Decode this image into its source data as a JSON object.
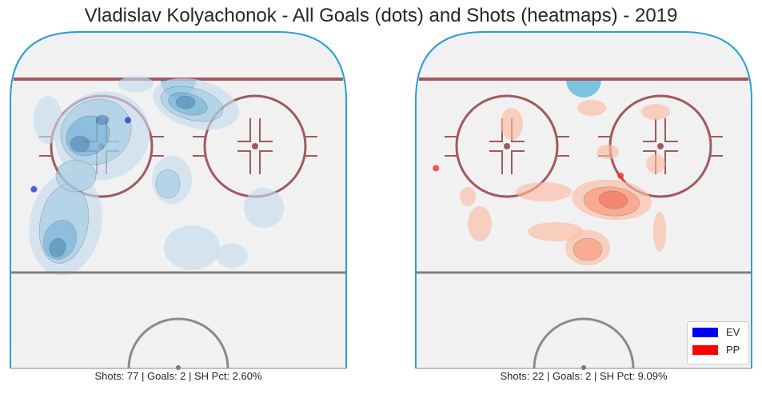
{
  "chart_data": [
    {
      "type": "heatmap",
      "title": "Vladislav Kolyachonok - All Goals (dots) and Shots (heatmaps) - 2019",
      "panel": "left",
      "caption": "Shots: 77 | Goals: 2 | SH Pct: 2.60%",
      "shots": 77,
      "goals": 2,
      "sh_pct": "2.60%",
      "strength": "EV",
      "heatmap_color": "#3182bd",
      "goal_dots": [
        {
          "x": -30,
          "y": 79,
          "strength": "EV"
        },
        {
          "x": -86,
          "y": 43,
          "strength": "EV"
        }
      ]
    },
    {
      "type": "heatmap",
      "panel": "right",
      "caption": "Shots: 22 | Goals: 2 | SH Pct: 9.09%",
      "shots": 22,
      "goals": 2,
      "sh_pct": "9.09%",
      "strength": "PP",
      "heatmap_color": "#e34a33",
      "goal_dots": [
        {
          "x": -88,
          "y": 54,
          "strength": "PP"
        },
        {
          "x": 22,
          "y": 50,
          "strength": "PP"
        }
      ]
    }
  ],
  "legend": {
    "position": "lower-right",
    "entries": [
      {
        "label": "EV",
        "color": "#0000ff"
      },
      {
        "label": "PP",
        "color": "#ff0000"
      }
    ]
  },
  "colors": {
    "rink_fill": "#f1f1f1",
    "boards": "#2a9fd6",
    "goal_line": "#a0595f",
    "blue_line": "#808080",
    "crease": "#7ec3e0",
    "circle": "#a0595f"
  }
}
